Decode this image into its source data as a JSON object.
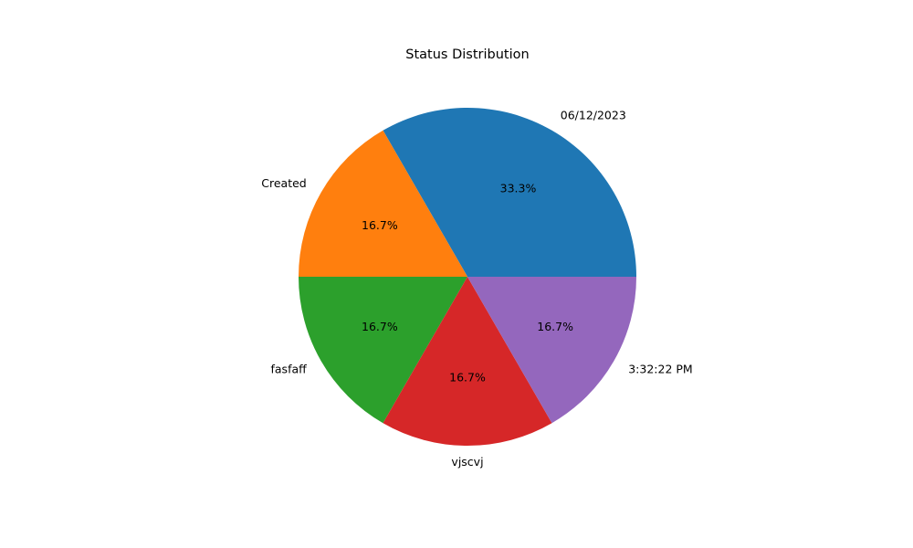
{
  "chart_data": {
    "type": "pie",
    "title": "Status Distribution",
    "labels": [
      "06/12/2023",
      "Created",
      "fasfaff",
      "vjscvj",
      "3:32:22 PM"
    ],
    "values": [
      2,
      1,
      1,
      1,
      1
    ],
    "percent_labels": [
      "33.3%",
      "16.7%",
      "16.7%",
      "16.7%",
      "16.7%"
    ],
    "colors": [
      "#1f77b4",
      "#ff7f0e",
      "#2ca02c",
      "#d62728",
      "#9467bd"
    ],
    "start_angle_deg": 0,
    "direction": "counterclockwise",
    "legend": "none"
  }
}
